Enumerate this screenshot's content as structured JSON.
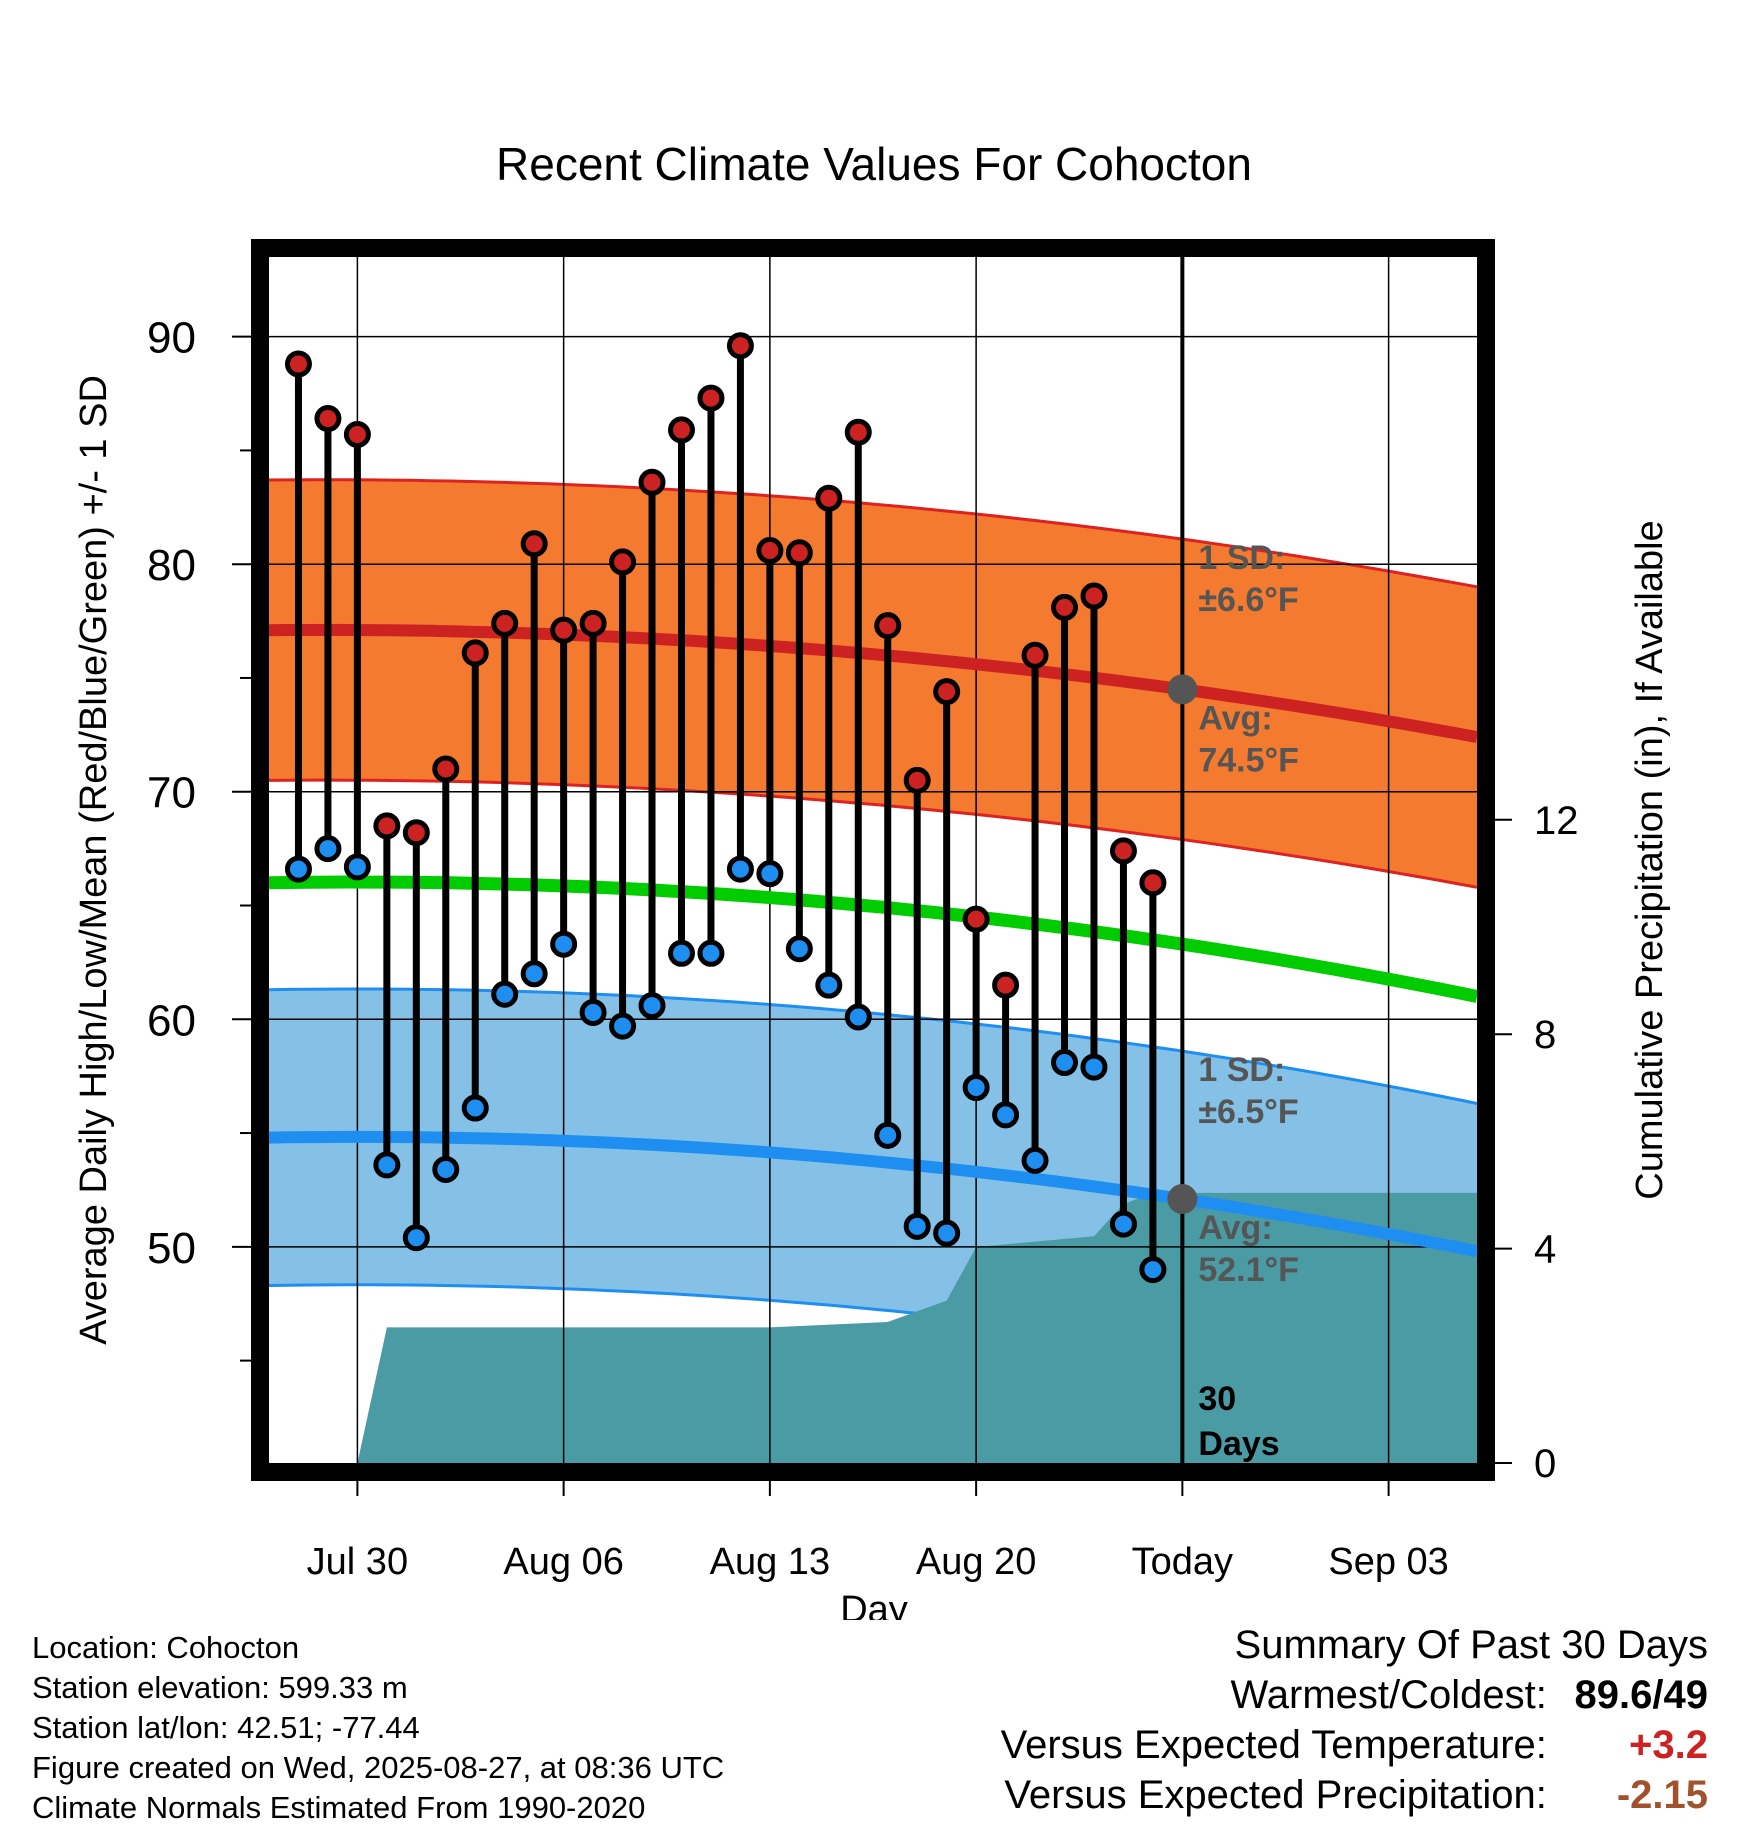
{
  "chart_data": {
    "type": "line",
    "title": "Recent Climate Values For Cohocton",
    "xlabel": "Day",
    "ylabel": "Average Daily High/Low/Mean (Red/Blue/Green) +/- 1 SD",
    "y2label": "Cumulative Precipitation (in), If Available",
    "ylim": [
      40.5,
      93.5
    ],
    "y2lim": [
      0,
      22.5
    ],
    "yticks": [
      "90",
      "80",
      "70",
      "60",
      "50"
    ],
    "y2ticks": [
      "12",
      "8",
      "4",
      "0"
    ],
    "xticks": [
      "Jul 30",
      "Aug 06",
      "Aug 13",
      "Aug 20",
      "Today",
      "Sep 03"
    ],
    "x_domain": [
      "2025-07-27",
      "2025-09-06"
    ],
    "today": "2025-08-27",
    "grid": true,
    "days": [
      "2025-07-28",
      "2025-07-29",
      "2025-07-30",
      "2025-07-31",
      "2025-08-01",
      "2025-08-02",
      "2025-08-03",
      "2025-08-04",
      "2025-08-05",
      "2025-08-06",
      "2025-08-07",
      "2025-08-08",
      "2025-08-09",
      "2025-08-10",
      "2025-08-11",
      "2025-08-12",
      "2025-08-13",
      "2025-08-14",
      "2025-08-15",
      "2025-08-16",
      "2025-08-17",
      "2025-08-18",
      "2025-08-19",
      "2025-08-20",
      "2025-08-21",
      "2025-08-22",
      "2025-08-23",
      "2025-08-24",
      "2025-08-25",
      "2025-08-26"
    ],
    "series": [
      {
        "name": "High",
        "color": "#cc2222",
        "values": [
          88.8,
          86.4,
          85.7,
          68.5,
          68.2,
          71.0,
          76.1,
          77.4,
          80.9,
          77.1,
          77.4,
          80.1,
          83.6,
          85.9,
          87.3,
          89.6,
          80.6,
          80.5,
          82.9,
          85.8,
          77.3,
          70.5,
          74.4,
          64.4,
          61.5,
          76.0,
          78.1,
          78.6,
          67.4,
          66.0
        ]
      },
      {
        "name": "Low",
        "color": "#1e8ff0",
        "values": [
          66.6,
          67.5,
          66.7,
          53.6,
          50.4,
          53.4,
          56.1,
          61.1,
          62.0,
          63.3,
          60.3,
          59.7,
          60.6,
          62.9,
          62.9,
          66.6,
          66.4,
          63.1,
          61.5,
          60.1,
          54.9,
          50.9,
          50.6,
          57.0,
          55.8,
          53.8,
          58.1,
          57.9,
          51.0,
          49.0
        ]
      }
    ],
    "normals": {
      "high_avg": {
        "color": "#cc2222",
        "start": 77.1,
        "today": 74.5,
        "end": 72.4
      },
      "high_sd": 6.6,
      "low_avg": {
        "color": "#1e8ff0",
        "start": 54.8,
        "today": 52.1,
        "end": 49.8
      },
      "low_sd": 6.5,
      "mean_avg": {
        "color": "#00cc00",
        "start": 66.0,
        "today": 63.3,
        "end": 61.0
      }
    },
    "precipitation": {
      "color": "#4a9ba4",
      "dates": [
        "2025-07-30",
        "2025-07-31",
        "2025-08-13",
        "2025-08-17",
        "2025-08-18",
        "2025-08-19",
        "2025-08-20",
        "2025-08-24",
        "2025-08-25",
        "2025-08-26",
        "2025-09-06"
      ],
      "values": [
        0.0,
        2.53,
        2.53,
        2.63,
        2.83,
        3.03,
        4.03,
        4.23,
        4.83,
        5.04,
        5.04
      ]
    },
    "annotations": {
      "high_sd_label": "1 SD:",
      "high_sd_value": "±6.6°F",
      "high_avg_label": "Avg:",
      "high_avg_value": "74.5°F",
      "low_sd_label": "1 SD:",
      "low_sd_value": "±6.5°F",
      "low_avg_label": "Avg:",
      "low_avg_value": "52.1°F",
      "period_1": "30",
      "period_2": "Days"
    }
  },
  "info": {
    "location": "Location: Cohocton",
    "elevation": "Station elevation: 599.33 m",
    "latlon": "Station lat/lon: 42.51; -77.44",
    "created": "Figure created on Wed, 2025-08-27, at 08:36 UTC",
    "normals": "Climate Normals Estimated From 1990-2020"
  },
  "summary": {
    "title": "Summary Of Past 30 Days",
    "warmest_label": "Warmest/Coldest:",
    "warmest_value": "89.6/49",
    "temp_label": "Versus Expected Temperature:",
    "temp_value": "+3.2",
    "temp_color": "#cc2222",
    "precip_label": "Versus Expected Precipitation:",
    "precip_value": "-2.15",
    "precip_color": "#a0522d"
  }
}
